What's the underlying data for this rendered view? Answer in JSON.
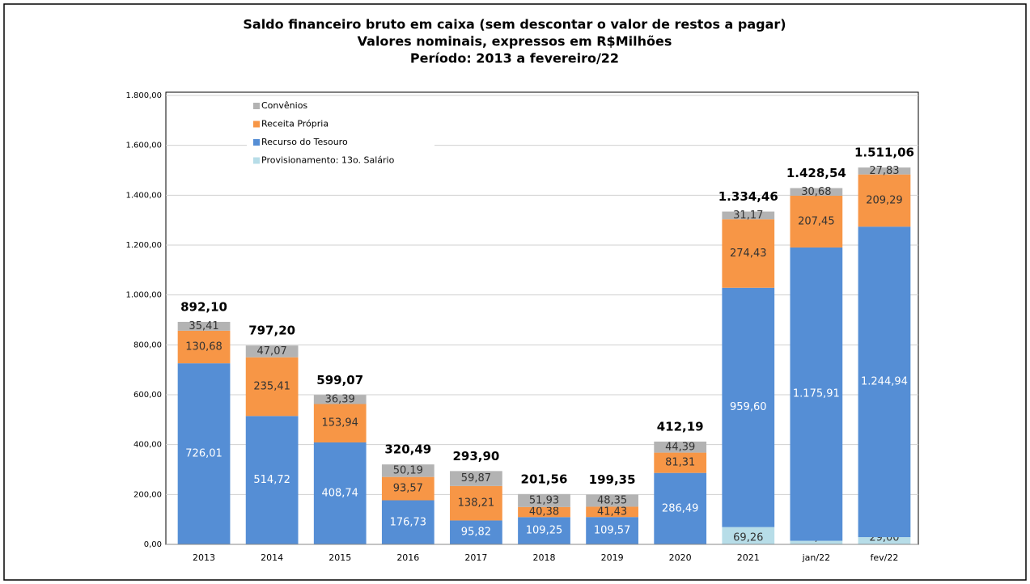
{
  "chart_data": {
    "type": "stacked_bar",
    "title": [
      "Saldo financeiro bruto em caixa (sem descontar o valor de restos a pagar)",
      "Valores nominais, expressos em R$Milhões",
      "Período: 2013 a fevereiro/22"
    ],
    "categories": [
      "2013",
      "2014",
      "2015",
      "2016",
      "2017",
      "2018",
      "2019",
      "2020",
      "2021",
      "jan/22",
      "fev/22"
    ],
    "series": [
      {
        "name": "Provisionamento: 13o. Salário",
        "color": "#b7dde8",
        "values": [
          null,
          null,
          null,
          null,
          null,
          null,
          null,
          null,
          69.26,
          14.5,
          29.0
        ],
        "value_labels": [
          null,
          null,
          null,
          null,
          null,
          null,
          null,
          null,
          "69,26",
          "14,50",
          "29,00"
        ]
      },
      {
        "name": "Recurso do Tesouro",
        "color": "#558ed5",
        "values": [
          726.01,
          514.72,
          408.74,
          176.73,
          95.82,
          109.25,
          109.57,
          286.49,
          959.6,
          1175.91,
          1244.94
        ],
        "value_labels": [
          "726,01",
          "514,72",
          "408,74",
          "176,73",
          "95,82",
          "109,25",
          "109,57",
          "286,49",
          "959,60",
          "1.175,91",
          "1.244,94"
        ]
      },
      {
        "name": "Receita Própria",
        "color": "#f79646",
        "values": [
          130.68,
          235.41,
          153.94,
          93.57,
          138.21,
          40.38,
          41.43,
          81.31,
          274.43,
          207.45,
          209.29
        ],
        "value_labels": [
          "130,68",
          "235,41",
          "153,94",
          "93,57",
          "138,21",
          "40,38",
          "41,43",
          "81,31",
          "274,43",
          "207,45",
          "209,29"
        ]
      },
      {
        "name": "Convênios",
        "color": "#b3b3b3",
        "values": [
          35.41,
          47.07,
          36.39,
          50.19,
          59.87,
          51.93,
          48.35,
          44.39,
          31.17,
          30.68,
          27.83
        ],
        "value_labels": [
          "35,41",
          "47,07",
          "36,39",
          "50,19",
          "59,87",
          "51,93",
          "48,35",
          "44,39",
          "31,17",
          "30,68",
          "27,83"
        ]
      }
    ],
    "totals": [
      892.1,
      797.2,
      599.07,
      320.49,
      293.9,
      201.56,
      199.35,
      412.19,
      1334.46,
      1428.54,
      1511.06
    ],
    "total_labels": [
      "892,10",
      "797,20",
      "599,07",
      "320,49",
      "293,90",
      "201,56",
      "199,35",
      "412,19",
      "1.334,46",
      "1.428,54",
      "1.511,06"
    ],
    "ylim": [
      0,
      1800
    ],
    "yticks": [
      {
        "value": 0,
        "label": "0,00"
      },
      {
        "value": 200,
        "label": "200,00"
      },
      {
        "value": 400,
        "label": "400,00"
      },
      {
        "value": 600,
        "label": "600,00"
      },
      {
        "value": 800,
        "label": "800,00"
      },
      {
        "value": 1000,
        "label": "1.000,00"
      },
      {
        "value": 1200,
        "label": "1.200,00"
      },
      {
        "value": 1400,
        "label": "1.400,00"
      },
      {
        "value": 1600,
        "label": "1.600,00"
      },
      {
        "value": 1800,
        "label": "1.800,00"
      }
    ],
    "grid": true,
    "legend": "top-left"
  }
}
